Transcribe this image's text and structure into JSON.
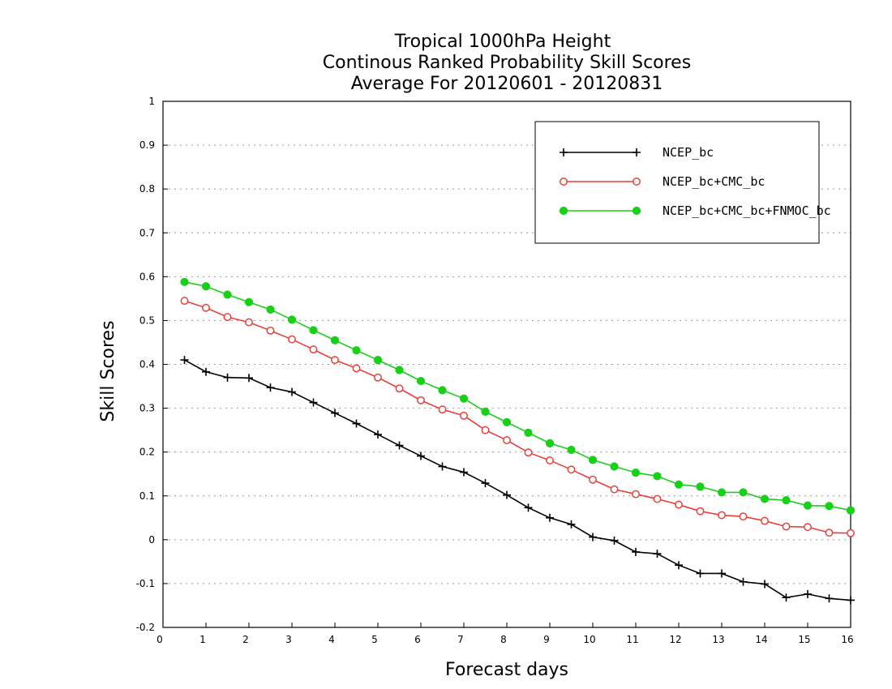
{
  "chart_data": {
    "type": "line",
    "title": [
      "Tropical 1000hPa Height",
      "Continous Ranked Probability Skill Scores",
      "Average For 20120601 - 20120831"
    ],
    "xlabel": "Forecast days",
    "ylabel": "Skill Scores",
    "xlim": [
      0,
      16
    ],
    "ylim": [
      -0.2,
      1
    ],
    "xticks": [
      0,
      1,
      2,
      3,
      4,
      5,
      6,
      7,
      8,
      9,
      10,
      11,
      12,
      13,
      14,
      15,
      16
    ],
    "yticks": [
      -0.2,
      -0.1,
      0,
      0.1,
      0.2,
      0.3,
      0.4,
      0.5,
      0.6,
      0.7,
      0.8,
      0.9,
      1
    ],
    "ytick_labels": [
      "-0.2",
      "-0.1",
      "0",
      "0.1",
      "0.2",
      "0.3",
      "0.4",
      "0.5",
      "0.6",
      "0.7",
      "0.8",
      "0.9",
      "1"
    ],
    "grid": "dotted horizontal",
    "legend_position": "top-right",
    "x": [
      0.5,
      1,
      1.5,
      2,
      2.5,
      3,
      3.5,
      4,
      4.5,
      5,
      5.5,
      6,
      6.5,
      7,
      7.5,
      8,
      8.5,
      9,
      9.5,
      10,
      10.5,
      11,
      11.5,
      12,
      12.5,
      13,
      13.5,
      14,
      14.5,
      15,
      15.5,
      16
    ],
    "series": [
      {
        "name": "NCEP_bc",
        "color": "#000000",
        "marker": "plus",
        "values": [
          0.41,
          0.383,
          0.37,
          0.369,
          0.347,
          0.337,
          0.313,
          0.289,
          0.265,
          0.24,
          0.215,
          0.191,
          0.167,
          0.154,
          0.129,
          0.102,
          0.073,
          0.05,
          0.035,
          0.006,
          -0.002,
          -0.028,
          -0.032,
          -0.058,
          -0.077,
          -0.077,
          -0.096,
          -0.101,
          -0.132,
          -0.124,
          -0.134,
          -0.138
        ]
      },
      {
        "name": "NCEP_bc+CMC_bc",
        "color": "#e8403a",
        "marker": "open-circle",
        "values": [
          0.545,
          0.529,
          0.508,
          0.496,
          0.477,
          0.457,
          0.434,
          0.41,
          0.391,
          0.37,
          0.345,
          0.318,
          0.297,
          0.283,
          0.25,
          0.227,
          0.199,
          0.181,
          0.16,
          0.137,
          0.115,
          0.104,
          0.093,
          0.08,
          0.065,
          0.056,
          0.053,
          0.043,
          0.03,
          0.029,
          0.016,
          0.015
        ]
      },
      {
        "name": "NCEP_bc+CMC_bc+FNMOC_bc",
        "color": "#18d018",
        "marker": "filled-circle",
        "values": [
          0.588,
          0.578,
          0.559,
          0.542,
          0.525,
          0.502,
          0.478,
          0.455,
          0.432,
          0.41,
          0.387,
          0.362,
          0.341,
          0.322,
          0.292,
          0.268,
          0.244,
          0.22,
          0.205,
          0.182,
          0.167,
          0.153,
          0.145,
          0.126,
          0.121,
          0.108,
          0.108,
          0.093,
          0.09,
          0.078,
          0.077,
          0.067
        ]
      }
    ]
  }
}
